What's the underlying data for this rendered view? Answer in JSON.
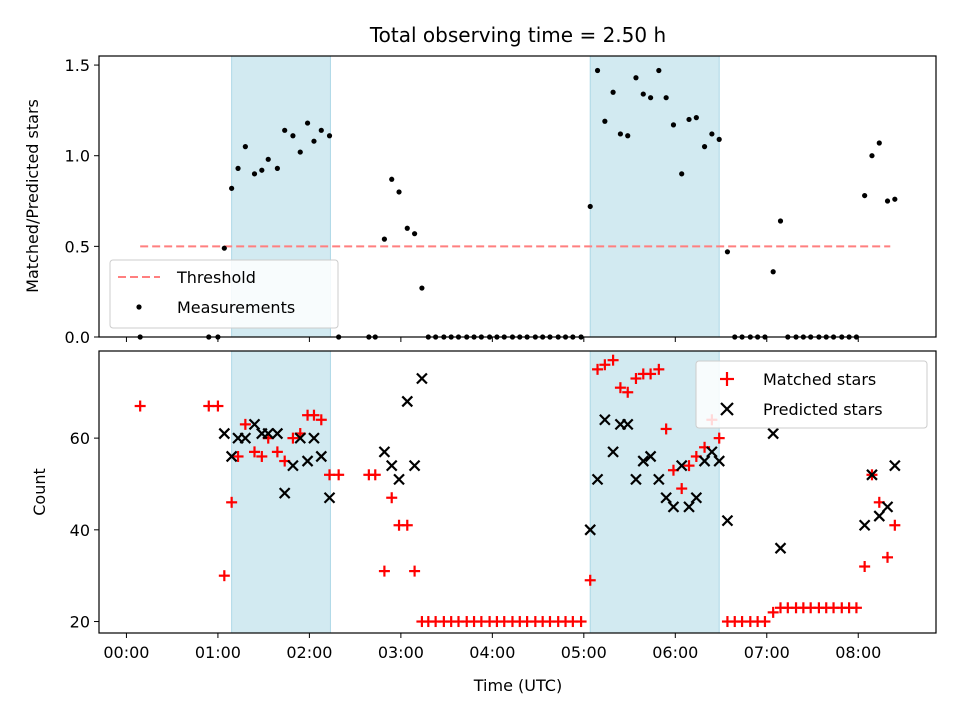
{
  "chart_data": [
    {
      "type": "scatter",
      "title": "Total observing time = 2.50 h",
      "xlabel": "",
      "ylabel": "Matched/Predicted stars",
      "xlim": [
        -0.3,
        8.85
      ],
      "ylim": [
        0,
        1.55
      ],
      "yticks": [
        "0.0",
        "0.5",
        "1.0",
        "1.5"
      ],
      "shaded_intervals": [
        [
          1.15,
          2.23
        ],
        [
          5.07,
          6.48
        ]
      ],
      "threshold": {
        "name": "Threshold",
        "value": 0.5,
        "x_range": [
          0.15,
          8.35
        ],
        "color": "#ff7f7f"
      },
      "legend": {
        "placement": "lower-left",
        "entries": [
          "Threshold",
          "Measurements"
        ]
      },
      "series": [
        {
          "name": "Measurements",
          "color": "#000000",
          "marker": "dot",
          "points": [
            [
              0.15,
              0.0
            ],
            [
              0.9,
              0.0
            ],
            [
              1.0,
              0.0
            ],
            [
              1.07,
              0.49
            ],
            [
              1.15,
              0.82
            ],
            [
              1.22,
              0.93
            ],
            [
              1.3,
              1.05
            ],
            [
              1.4,
              0.9
            ],
            [
              1.48,
              0.92
            ],
            [
              1.55,
              0.98
            ],
            [
              1.65,
              0.93
            ],
            [
              1.73,
              1.14
            ],
            [
              1.82,
              1.11
            ],
            [
              1.9,
              1.02
            ],
            [
              1.98,
              1.18
            ],
            [
              2.05,
              1.08
            ],
            [
              2.13,
              1.14
            ],
            [
              2.22,
              1.11
            ],
            [
              2.32,
              0.0
            ],
            [
              2.65,
              0.0
            ],
            [
              2.72,
              0.0
            ],
            [
              2.82,
              0.54
            ],
            [
              2.9,
              0.87
            ],
            [
              2.98,
              0.8
            ],
            [
              3.07,
              0.6
            ],
            [
              3.15,
              0.57
            ],
            [
              3.23,
              0.27
            ],
            [
              3.3,
              0.0
            ],
            [
              3.38,
              0.0
            ],
            [
              3.47,
              0.0
            ],
            [
              3.55,
              0.0
            ],
            [
              3.63,
              0.0
            ],
            [
              3.72,
              0.0
            ],
            [
              3.8,
              0.0
            ],
            [
              3.88,
              0.0
            ],
            [
              3.97,
              0.0
            ],
            [
              4.05,
              0.0
            ],
            [
              4.13,
              0.0
            ],
            [
              4.22,
              0.0
            ],
            [
              4.3,
              0.0
            ],
            [
              4.38,
              0.0
            ],
            [
              4.47,
              0.0
            ],
            [
              4.55,
              0.0
            ],
            [
              4.63,
              0.0
            ],
            [
              4.72,
              0.0
            ],
            [
              4.8,
              0.0
            ],
            [
              4.88,
              0.0
            ],
            [
              4.97,
              0.0
            ],
            [
              5.07,
              0.72
            ],
            [
              5.15,
              1.47
            ],
            [
              5.23,
              1.19
            ],
            [
              5.32,
              1.35
            ],
            [
              5.4,
              1.12
            ],
            [
              5.48,
              1.11
            ],
            [
              5.57,
              1.43
            ],
            [
              5.65,
              1.34
            ],
            [
              5.73,
              1.32
            ],
            [
              5.82,
              1.47
            ],
            [
              5.9,
              1.32
            ],
            [
              5.98,
              1.17
            ],
            [
              6.07,
              0.9
            ],
            [
              6.15,
              1.2
            ],
            [
              6.23,
              1.21
            ],
            [
              6.32,
              1.05
            ],
            [
              6.4,
              1.12
            ],
            [
              6.48,
              1.09
            ],
            [
              6.57,
              0.47
            ],
            [
              6.65,
              0.0
            ],
            [
              6.73,
              0.0
            ],
            [
              6.82,
              0.0
            ],
            [
              6.9,
              0.0
            ],
            [
              6.98,
              0.0
            ],
            [
              7.07,
              0.36
            ],
            [
              7.15,
              0.64
            ],
            [
              7.23,
              0.0
            ],
            [
              7.32,
              0.0
            ],
            [
              7.4,
              0.0
            ],
            [
              7.48,
              0.0
            ],
            [
              7.57,
              0.0
            ],
            [
              7.65,
              0.0
            ],
            [
              7.73,
              0.0
            ],
            [
              7.82,
              0.0
            ],
            [
              7.9,
              0.0
            ],
            [
              7.98,
              0.0
            ],
            [
              8.07,
              0.78
            ],
            [
              8.15,
              1.0
            ],
            [
              8.23,
              1.07
            ],
            [
              8.32,
              0.75
            ],
            [
              8.4,
              0.76
            ]
          ]
        }
      ]
    },
    {
      "type": "scatter",
      "title": "",
      "xlabel": "Time (UTC)",
      "ylabel": "Count",
      "xlim": [
        -0.3,
        8.85
      ],
      "ylim": [
        17.5,
        79
      ],
      "xticks": [
        0,
        1,
        2,
        3,
        4,
        5,
        6,
        7,
        8
      ],
      "xtick_labels": [
        "00:00",
        "01:00",
        "02:00",
        "03:00",
        "04:00",
        "05:00",
        "06:00",
        "07:00",
        "08:00"
      ],
      "yticks": [
        "20",
        "40",
        "60"
      ],
      "shaded_intervals": [
        [
          1.15,
          2.23
        ],
        [
          5.07,
          6.48
        ]
      ],
      "legend": {
        "placement": "top-right",
        "entries": [
          "Matched stars",
          "Predicted stars"
        ]
      },
      "series": [
        {
          "name": "Matched stars",
          "color": "#ff0000",
          "marker": "plus",
          "points": [
            [
              0.15,
              67
            ],
            [
              0.9,
              67
            ],
            [
              1.0,
              67
            ],
            [
              1.07,
              30
            ],
            [
              1.15,
              46
            ],
            [
              1.22,
              56
            ],
            [
              1.3,
              63
            ],
            [
              1.4,
              57
            ],
            [
              1.48,
              56
            ],
            [
              1.55,
              60
            ],
            [
              1.65,
              57
            ],
            [
              1.73,
              55
            ],
            [
              1.82,
              60
            ],
            [
              1.9,
              61
            ],
            [
              1.98,
              65
            ],
            [
              2.05,
              65
            ],
            [
              2.13,
              64
            ],
            [
              2.22,
              52
            ],
            [
              2.32,
              52
            ],
            [
              2.65,
              52
            ],
            [
              2.72,
              52
            ],
            [
              2.82,
              31
            ],
            [
              2.9,
              47
            ],
            [
              2.98,
              41
            ],
            [
              3.07,
              41
            ],
            [
              3.15,
              31
            ],
            [
              3.23,
              20
            ],
            [
              3.3,
              20
            ],
            [
              3.38,
              20
            ],
            [
              3.47,
              20
            ],
            [
              3.55,
              20
            ],
            [
              3.63,
              20
            ],
            [
              3.72,
              20
            ],
            [
              3.8,
              20
            ],
            [
              3.88,
              20
            ],
            [
              3.97,
              20
            ],
            [
              4.05,
              20
            ],
            [
              4.13,
              20
            ],
            [
              4.22,
              20
            ],
            [
              4.3,
              20
            ],
            [
              4.38,
              20
            ],
            [
              4.47,
              20
            ],
            [
              4.55,
              20
            ],
            [
              4.63,
              20
            ],
            [
              4.72,
              20
            ],
            [
              4.8,
              20
            ],
            [
              4.88,
              20
            ],
            [
              4.97,
              20
            ],
            [
              5.07,
              29
            ],
            [
              5.15,
              75
            ],
            [
              5.23,
              76
            ],
            [
              5.32,
              77
            ],
            [
              5.4,
              71
            ],
            [
              5.48,
              70
            ],
            [
              5.57,
              73
            ],
            [
              5.65,
              74
            ],
            [
              5.73,
              74
            ],
            [
              5.82,
              75
            ],
            [
              5.9,
              62
            ],
            [
              5.98,
              53
            ],
            [
              6.07,
              49
            ],
            [
              6.15,
              54
            ],
            [
              6.23,
              56
            ],
            [
              6.32,
              58
            ],
            [
              6.4,
              64
            ],
            [
              6.48,
              60
            ],
            [
              6.57,
              20
            ],
            [
              6.65,
              20
            ],
            [
              6.73,
              20
            ],
            [
              6.82,
              20
            ],
            [
              6.9,
              20
            ],
            [
              6.98,
              20
            ],
            [
              7.07,
              22
            ],
            [
              7.15,
              23
            ],
            [
              7.23,
              23
            ],
            [
              7.32,
              23
            ],
            [
              7.4,
              23
            ],
            [
              7.48,
              23
            ],
            [
              7.57,
              23
            ],
            [
              7.65,
              23
            ],
            [
              7.73,
              23
            ],
            [
              7.82,
              23
            ],
            [
              7.9,
              23
            ],
            [
              7.98,
              23
            ],
            [
              8.07,
              32
            ],
            [
              8.15,
              52
            ],
            [
              8.23,
              46
            ],
            [
              8.32,
              34
            ],
            [
              8.4,
              41
            ]
          ]
        },
        {
          "name": "Predicted stars",
          "color": "#000000",
          "marker": "x",
          "points": [
            [
              1.07,
              61
            ],
            [
              1.15,
              56
            ],
            [
              1.22,
              60
            ],
            [
              1.3,
              60
            ],
            [
              1.4,
              63
            ],
            [
              1.48,
              61
            ],
            [
              1.55,
              61
            ],
            [
              1.65,
              61
            ],
            [
              1.73,
              48
            ],
            [
              1.82,
              54
            ],
            [
              1.9,
              60
            ],
            [
              1.98,
              55
            ],
            [
              2.05,
              60
            ],
            [
              2.13,
              56
            ],
            [
              2.22,
              47
            ],
            [
              2.82,
              57
            ],
            [
              2.9,
              54
            ],
            [
              2.98,
              51
            ],
            [
              3.07,
              68
            ],
            [
              3.15,
              54
            ],
            [
              3.23,
              73
            ],
            [
              5.07,
              40
            ],
            [
              5.15,
              51
            ],
            [
              5.23,
              64
            ],
            [
              5.32,
              57
            ],
            [
              5.4,
              63
            ],
            [
              5.48,
              63
            ],
            [
              5.57,
              51
            ],
            [
              5.65,
              55
            ],
            [
              5.73,
              56
            ],
            [
              5.82,
              51
            ],
            [
              5.9,
              47
            ],
            [
              5.98,
              45
            ],
            [
              6.07,
              54
            ],
            [
              6.15,
              45
            ],
            [
              6.23,
              47
            ],
            [
              6.32,
              55
            ],
            [
              6.4,
              57
            ],
            [
              6.48,
              55
            ],
            [
              6.57,
              42
            ],
            [
              7.07,
              61
            ],
            [
              7.15,
              36
            ],
            [
              8.07,
              41
            ],
            [
              8.15,
              52
            ],
            [
              8.23,
              43
            ],
            [
              8.32,
              45
            ],
            [
              8.4,
              54
            ]
          ]
        }
      ]
    }
  ]
}
